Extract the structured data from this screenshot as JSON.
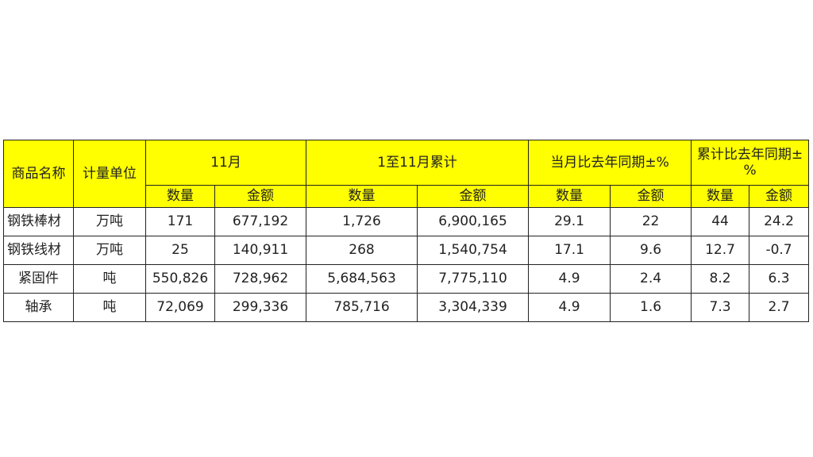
{
  "header": {
    "product": "商品名称",
    "unit": "计量单位",
    "month": "11月",
    "cumulative": "1至11月累计",
    "month_yoy": "当月比去年同期±%",
    "cum_yoy": "累计比去年同期±%",
    "qty": "数量",
    "amount": "金额"
  },
  "rows": [
    {
      "name": "钢铁棒材",
      "unit": "万吨",
      "m_qty": "171",
      "m_amt": "677,192",
      "c_qty": "1,726",
      "c_amt": "6,900,165",
      "my_qty": "29.1",
      "my_amt": "22",
      "cy_qty": "44",
      "cy_amt": "24.2"
    },
    {
      "name": "钢铁线材",
      "unit": "万吨",
      "m_qty": "25",
      "m_amt": "140,911",
      "c_qty": "268",
      "c_amt": "1,540,754",
      "my_qty": "17.1",
      "my_amt": "9.6",
      "cy_qty": "12.7",
      "cy_amt": "-0.7"
    },
    {
      "name": "紧固件",
      "unit": "吨",
      "m_qty": "550,826",
      "m_amt": "728,962",
      "c_qty": "5,684,563",
      "c_amt": "7,775,110",
      "my_qty": "4.9",
      "my_amt": "2.4",
      "cy_qty": "8.2",
      "cy_amt": "6.3"
    },
    {
      "name": "轴承",
      "unit": "吨",
      "m_qty": "72,069",
      "m_amt": "299,336",
      "c_qty": "785,716",
      "c_amt": "3,304,339",
      "my_qty": "4.9",
      "my_amt": "1.6",
      "cy_qty": "7.3",
      "cy_amt": "2.7"
    }
  ],
  "colors": {
    "header_bg": "#ffff00",
    "border": "#222222"
  }
}
